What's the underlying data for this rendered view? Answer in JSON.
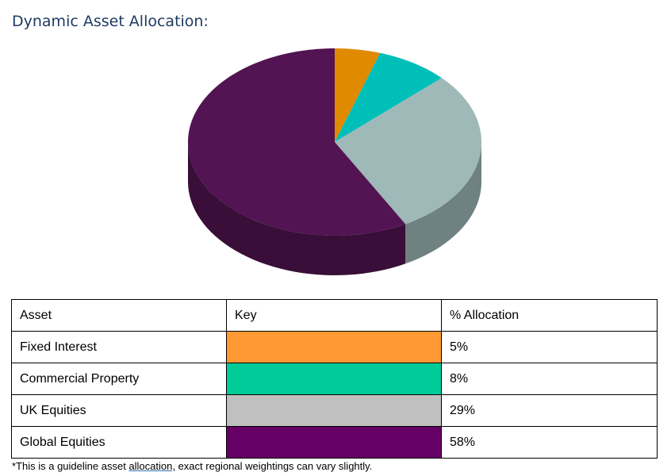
{
  "header": {
    "title": "Dynamic Asset Allocation:"
  },
  "chart_data": {
    "type": "pie",
    "slices": [
      {
        "label": "Fixed Interest",
        "value": 5,
        "color": "#e08a00"
      },
      {
        "label": "Commercial Property",
        "value": 8,
        "color": "#00bfb8"
      },
      {
        "label": "UK Equities",
        "value": 29,
        "color": "#9fb8b8"
      },
      {
        "label": "Global Equities",
        "value": 58,
        "color": "#521452"
      }
    ]
  },
  "table": {
    "headers": [
      "Asset",
      "Key",
      "% Allocation"
    ],
    "rows": [
      {
        "asset": "Fixed Interest",
        "key_color": "#ff9933",
        "allocation": "5%"
      },
      {
        "asset": "Commercial Property",
        "key_color": "#00cc99",
        "allocation": "8%"
      },
      {
        "asset": "UK Equities",
        "key_color": "#c0c0c0",
        "allocation": "29%"
      },
      {
        "asset": "Global Equities",
        "key_color": "#660066",
        "allocation": "58%"
      }
    ]
  },
  "footnote": {
    "before": "*This is a guideline asset ",
    "underlined": "allocation,",
    "after": " exact regional weightings can vary slightly."
  }
}
